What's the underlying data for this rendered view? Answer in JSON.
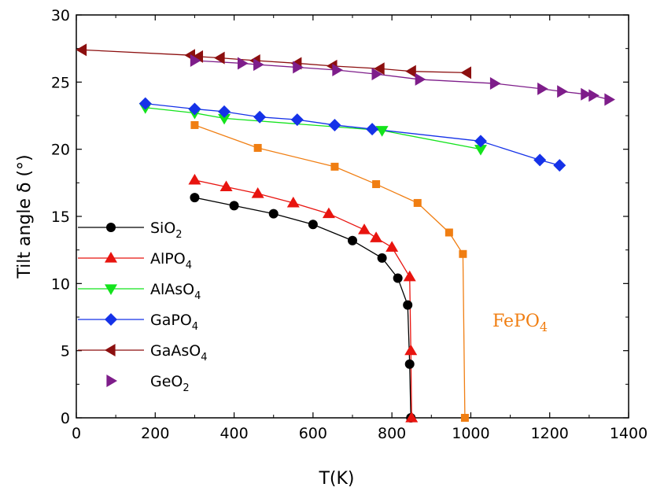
{
  "chart_data": {
    "type": "line",
    "xlabel": "T(K)",
    "ylabel": "Tilt angle δ (°)",
    "xlim": [
      0,
      1400
    ],
    "ylim": [
      0,
      30
    ],
    "x_ticks": [
      "0",
      "200",
      "400",
      "600",
      "800",
      "1000",
      "1200",
      "1400"
    ],
    "y_ticks": [
      "0",
      "5",
      "10",
      "15",
      "20",
      "25",
      "30"
    ],
    "grid": false,
    "legend_position": "left-center",
    "annotation": {
      "text": "FePO",
      "sub": "4",
      "color": "#f07e12"
    },
    "series": [
      {
        "name": "SiO",
        "sub": "2",
        "color": "#000000",
        "marker": "circle",
        "x": [
          300,
          400,
          500,
          600,
          700,
          775,
          815,
          840,
          845,
          848
        ],
        "y": [
          16.4,
          15.8,
          15.2,
          14.4,
          13.2,
          11.9,
          10.4,
          8.4,
          4.0,
          0
        ]
      },
      {
        "name": "AlPO",
        "sub": "4",
        "color": "#e8140f",
        "marker": "triangle-up",
        "x": [
          300,
          380,
          460,
          550,
          640,
          730,
          760,
          800,
          845,
          848,
          850
        ],
        "y": [
          17.7,
          17.2,
          16.7,
          16.0,
          15.2,
          14.0,
          13.4,
          12.7,
          10.5,
          5.0,
          0
        ]
      },
      {
        "name": "AlAsO",
        "sub": "4",
        "color": "#13e31c",
        "marker": "triangle-down",
        "x": [
          175,
          300,
          375,
          775,
          1025
        ],
        "y": [
          23.1,
          22.7,
          22.3,
          21.4,
          20.0
        ]
      },
      {
        "name": "GaPO",
        "sub": "4",
        "color": "#1532e8",
        "marker": "diamond",
        "x": [
          175,
          300,
          375,
          465,
          560,
          655,
          750,
          1025,
          1175,
          1225
        ],
        "y": [
          23.4,
          23.0,
          22.8,
          22.4,
          22.2,
          21.8,
          21.5,
          20.6,
          19.2,
          18.8
        ]
      },
      {
        "name": "GaAsO",
        "sub": "4",
        "color": "#8c0f0f",
        "marker": "triangle-left",
        "x": [
          15,
          290,
          310,
          365,
          455,
          560,
          650,
          770,
          850,
          990
        ],
        "y": [
          27.4,
          27.0,
          26.9,
          26.8,
          26.6,
          26.4,
          26.2,
          26.0,
          25.8,
          25.7
        ]
      },
      {
        "name": "GeO",
        "sub": "2",
        "color": "#7e1d8a",
        "marker": "triangle-right",
        "x": [
          300,
          420,
          460,
          560,
          660,
          760,
          870,
          1060,
          1180,
          1230,
          1290,
          1310,
          1350
        ],
        "y": [
          26.6,
          26.4,
          26.3,
          26.1,
          25.9,
          25.6,
          25.2,
          24.9,
          24.5,
          24.3,
          24.1,
          24.0,
          23.7
        ]
      },
      {
        "name": "FePO",
        "sub": "4",
        "color": "#f07e12",
        "marker": "square",
        "x": [
          300,
          460,
          655,
          760,
          865,
          945,
          980,
          985
        ],
        "y": [
          21.8,
          20.1,
          18.7,
          17.4,
          16.0,
          13.8,
          12.2,
          0
        ]
      }
    ]
  }
}
